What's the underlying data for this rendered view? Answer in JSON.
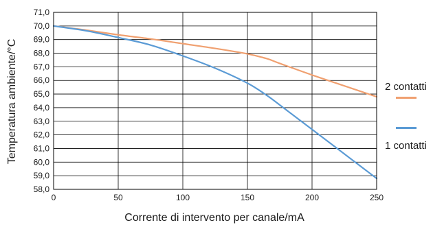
{
  "chart_data": {
    "type": "line",
    "title": "",
    "xlabel": "Corrente di intervento per canale/mA",
    "ylabel": "Temperatura ambiente/°C",
    "xlim": [
      0,
      250
    ],
    "ylim": [
      58,
      71
    ],
    "x_ticks": [
      "0",
      "50",
      "100",
      "150",
      "200",
      "250"
    ],
    "y_ticks": [
      "58,0",
      "59,0",
      "60,0",
      "61,0",
      "62,0",
      "63,0",
      "64,0",
      "65,0",
      "66,0",
      "67,0",
      "68,0",
      "69,0",
      "70,0",
      "71,0"
    ],
    "grid": true,
    "legend_position": "right",
    "series": [
      {
        "name": "2 contatti",
        "color": "#f0a070",
        "points": [
          [
            0,
            70.0
          ],
          [
            25,
            69.7
          ],
          [
            50,
            69.35
          ],
          [
            75,
            69.05
          ],
          [
            100,
            68.7
          ],
          [
            125,
            68.35
          ],
          [
            150,
            67.95
          ],
          [
            165,
            67.6
          ],
          [
            175,
            67.25
          ],
          [
            200,
            66.4
          ],
          [
            225,
            65.6
          ],
          [
            250,
            64.8
          ]
        ]
      },
      {
        "name": "1 contatti",
        "color": "#5b9bd5",
        "points": [
          [
            0,
            70.0
          ],
          [
            25,
            69.65
          ],
          [
            50,
            69.15
          ],
          [
            75,
            68.6
          ],
          [
            100,
            67.8
          ],
          [
            125,
            66.9
          ],
          [
            150,
            65.8
          ],
          [
            165,
            64.9
          ],
          [
            175,
            64.2
          ],
          [
            200,
            62.4
          ],
          [
            225,
            60.6
          ],
          [
            250,
            58.8
          ]
        ]
      }
    ]
  }
}
